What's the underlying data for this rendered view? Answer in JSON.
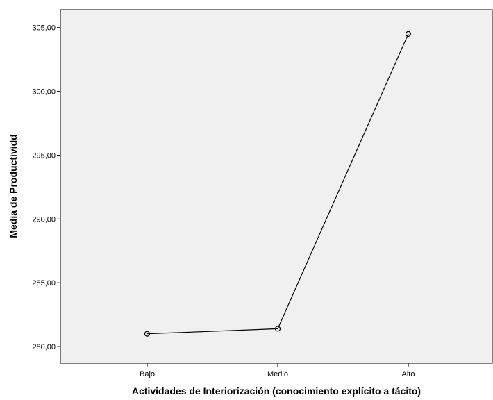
{
  "chart_data": {
    "type": "line",
    "title": "",
    "xlabel": "Actividades de Interiorización (conocimiento explícito a tácito)",
    "ylabel": "Media de Productividd",
    "categories": [
      "Bajo",
      "Medio",
      "Alto"
    ],
    "series": [
      {
        "values": [
          281.0,
          281.4,
          304.5
        ]
      }
    ],
    "ylim": [
      278.7,
      306.4
    ],
    "yticks": [
      280,
      285,
      290,
      295,
      300,
      305
    ],
    "ytick_labels": [
      "280,00",
      "285,00",
      "290,00",
      "295,00",
      "300,00",
      "305,00"
    ],
    "grid": false,
    "legend": "none",
    "marker": "circle-open",
    "colors": {
      "plot_background": "#f0f0f0",
      "line": "#000000",
      "marker_edge": "#000000"
    }
  }
}
